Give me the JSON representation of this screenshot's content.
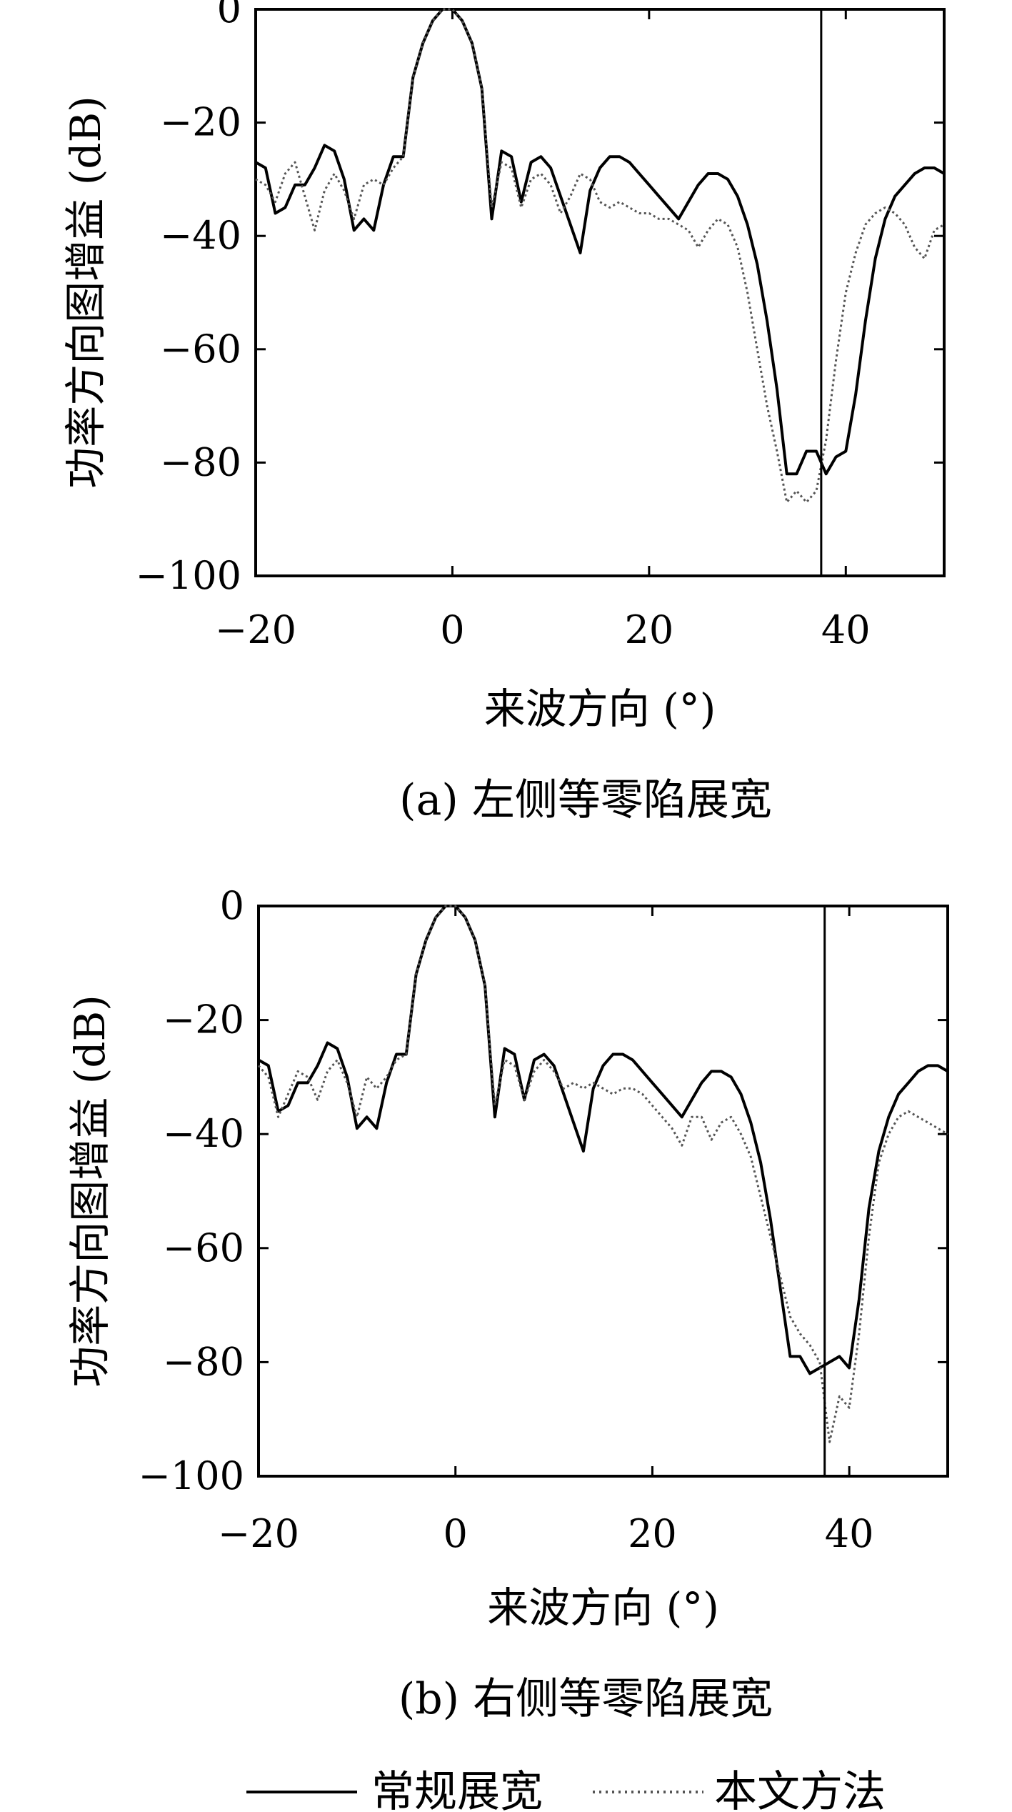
{
  "colors": {
    "background": "#ffffff",
    "axis": "#000000",
    "series_conventional": "#000000",
    "series_proposed": "#555555"
  },
  "legend": {
    "items": [
      {
        "label": "常规展宽",
        "style": "solid"
      },
      {
        "label": "本文方法",
        "style": "dotted"
      }
    ]
  },
  "chart_data": [
    {
      "type": "line",
      "caption": "(a) 左侧等零陷展宽",
      "xlabel": "来波方向 (°)",
      "ylabel": "功率方向图增益 (dB)",
      "xlim": [
        -20,
        50
      ],
      "ylim": [
        -100,
        0
      ],
      "xticks": [
        -20,
        0,
        20,
        40
      ],
      "yticks": [
        0,
        -20,
        -40,
        -60,
        -80,
        -100
      ],
      "xtick_labels": [
        "−20",
        "0",
        "20",
        "40"
      ],
      "ytick_labels": [
        "0",
        "−20",
        "−40",
        "−60",
        "−80",
        "−100"
      ],
      "grid": false,
      "vline_x": 37.5,
      "series": [
        {
          "name": "常规展宽",
          "x": [
            -20,
            -19,
            -18,
            -17,
            -16,
            -15,
            -14,
            -13,
            -12,
            -11,
            -10,
            -9,
            -8,
            -7,
            -6,
            -5,
            -4,
            -3,
            -2,
            -1,
            0,
            1,
            2,
            3,
            4,
            5,
            6,
            7,
            8,
            9,
            10,
            11,
            12,
            13,
            14,
            15,
            16,
            17,
            18,
            19,
            20,
            21,
            22,
            23,
            24,
            25,
            26,
            27,
            28,
            29,
            30,
            31,
            32,
            33,
            34,
            35,
            36,
            37,
            38,
            39,
            40,
            41,
            42,
            43,
            44,
            45,
            46,
            47,
            48,
            49,
            50
          ],
          "y": [
            -27,
            -28,
            -36,
            -35,
            -31,
            -31,
            -28,
            -24,
            -25,
            -30,
            -39,
            -37,
            -39,
            -31,
            -26,
            -26,
            -12,
            -6,
            -2,
            0,
            0,
            -2,
            -6,
            -14,
            -37,
            -25,
            -26,
            -34,
            -27,
            -26,
            -28,
            -33,
            -38,
            -43,
            -32,
            -28,
            -26,
            -26,
            -27,
            -29,
            -31,
            -33,
            -35,
            -37,
            -34,
            -31,
            -29,
            -29,
            -30,
            -33,
            -38,
            -45,
            -55,
            -67,
            -82,
            -82,
            -78,
            -78,
            -82,
            -79,
            -78,
            -68,
            -55,
            -44,
            -37,
            -33,
            -31,
            -29,
            -28,
            -28,
            -29
          ]
        },
        {
          "name": "本文方法",
          "x": [
            -20,
            -19,
            -18,
            -17,
            -16,
            -15,
            -14,
            -13,
            -12,
            -11,
            -10,
            -9,
            -8,
            -7,
            -6,
            -5,
            -4,
            -3,
            -2,
            -1,
            0,
            1,
            2,
            3,
            4,
            5,
            6,
            7,
            8,
            9,
            10,
            11,
            12,
            13,
            14,
            15,
            16,
            17,
            18,
            19,
            20,
            21,
            22,
            23,
            24,
            25,
            26,
            27,
            28,
            29,
            30,
            31,
            32,
            33,
            34,
            35,
            36,
            37,
            38,
            39,
            40,
            41,
            42,
            43,
            44,
            45,
            46,
            47,
            48,
            49,
            50
          ],
          "y": [
            -30,
            -31,
            -34,
            -29,
            -27,
            -33,
            -39,
            -32,
            -29,
            -32,
            -37,
            -31,
            -30,
            -31,
            -28,
            -26,
            -12,
            -6,
            -2,
            0,
            0,
            -2,
            -6,
            -14,
            -35,
            -27,
            -28,
            -35,
            -30,
            -29,
            -31,
            -36,
            -33,
            -29,
            -30,
            -34,
            -35,
            -34,
            -35,
            -36,
            -36,
            -37,
            -37,
            -38,
            -39,
            -42,
            -39,
            -37,
            -38,
            -42,
            -50,
            -60,
            -70,
            -78,
            -87,
            -85,
            -87,
            -85,
            -76,
            -62,
            -50,
            -43,
            -38,
            -36,
            -35,
            -36,
            -38,
            -42,
            -44,
            -39,
            -38
          ]
        }
      ]
    },
    {
      "type": "line",
      "caption": "(b) 右侧等零陷展宽",
      "xlabel": "来波方向 (°)",
      "ylabel": "功率方向图增益 (dB)",
      "xlim": [
        -20,
        50
      ],
      "ylim": [
        -100,
        0
      ],
      "xticks": [
        -20,
        0,
        20,
        40
      ],
      "yticks": [
        0,
        -20,
        -40,
        -60,
        -80,
        -100
      ],
      "xtick_labels": [
        "−20",
        "0",
        "20",
        "40"
      ],
      "ytick_labels": [
        "0",
        "−20",
        "−40",
        "−60",
        "−80",
        "−100"
      ],
      "grid": false,
      "vline_x": 37.5,
      "series": [
        {
          "name": "常规展宽",
          "x": [
            -20,
            -19,
            -18,
            -17,
            -16,
            -15,
            -14,
            -13,
            -12,
            -11,
            -10,
            -9,
            -8,
            -7,
            -6,
            -5,
            -4,
            -3,
            -2,
            -1,
            0,
            1,
            2,
            3,
            4,
            5,
            6,
            7,
            8,
            9,
            10,
            11,
            12,
            13,
            14,
            15,
            16,
            17,
            18,
            19,
            20,
            21,
            22,
            23,
            24,
            25,
            26,
            27,
            28,
            29,
            30,
            31,
            32,
            33,
            34,
            35,
            36,
            37,
            38,
            39,
            40,
            41,
            42,
            43,
            44,
            45,
            46,
            47,
            48,
            49,
            50
          ],
          "y": [
            -27,
            -28,
            -36,
            -35,
            -31,
            -31,
            -28,
            -24,
            -25,
            -30,
            -39,
            -37,
            -39,
            -31,
            -26,
            -26,
            -12,
            -6,
            -2,
            0,
            0,
            -2,
            -6,
            -14,
            -37,
            -25,
            -26,
            -34,
            -27,
            -26,
            -28,
            -33,
            -38,
            -43,
            -32,
            -28,
            -26,
            -26,
            -27,
            -29,
            -31,
            -33,
            -35,
            -37,
            -34,
            -31,
            -29,
            -29,
            -30,
            -33,
            -38,
            -45,
            -55,
            -67,
            -79,
            -79,
            -82,
            -81,
            -80,
            -79,
            -81,
            -69,
            -53,
            -43,
            -37,
            -33,
            -31,
            -29,
            -28,
            -28,
            -29
          ]
        },
        {
          "name": "本文方法",
          "x": [
            -20,
            -19,
            -18,
            -17,
            -16,
            -15,
            -14,
            -13,
            -12,
            -11,
            -10,
            -9,
            -8,
            -7,
            -6,
            -5,
            -4,
            -3,
            -2,
            -1,
            0,
            1,
            2,
            3,
            4,
            5,
            6,
            7,
            8,
            9,
            10,
            11,
            12,
            13,
            14,
            15,
            16,
            17,
            18,
            19,
            20,
            21,
            22,
            23,
            24,
            25,
            26,
            27,
            28,
            29,
            30,
            31,
            32,
            33,
            34,
            35,
            36,
            37,
            38,
            39,
            40,
            41,
            42,
            43,
            44,
            45,
            46,
            47,
            48,
            49,
            50
          ],
          "y": [
            -28,
            -30,
            -37,
            -33,
            -29,
            -30,
            -34,
            -29,
            -27,
            -31,
            -37,
            -30,
            -32,
            -30,
            -27,
            -26,
            -12,
            -6,
            -2,
            0,
            0,
            -2,
            -6,
            -14,
            -35,
            -27,
            -28,
            -34,
            -29,
            -27,
            -29,
            -32,
            -31,
            -32,
            -31,
            -32,
            -33,
            -32,
            -32,
            -33,
            -35,
            -37,
            -39,
            -42,
            -37,
            -37,
            -41,
            -38,
            -37,
            -40,
            -44,
            -51,
            -58,
            -65,
            -72,
            -75,
            -77,
            -80,
            -94,
            -86,
            -88,
            -75,
            -58,
            -45,
            -40,
            -37,
            -36,
            -37,
            -38,
            -39,
            -40
          ]
        }
      ]
    }
  ]
}
